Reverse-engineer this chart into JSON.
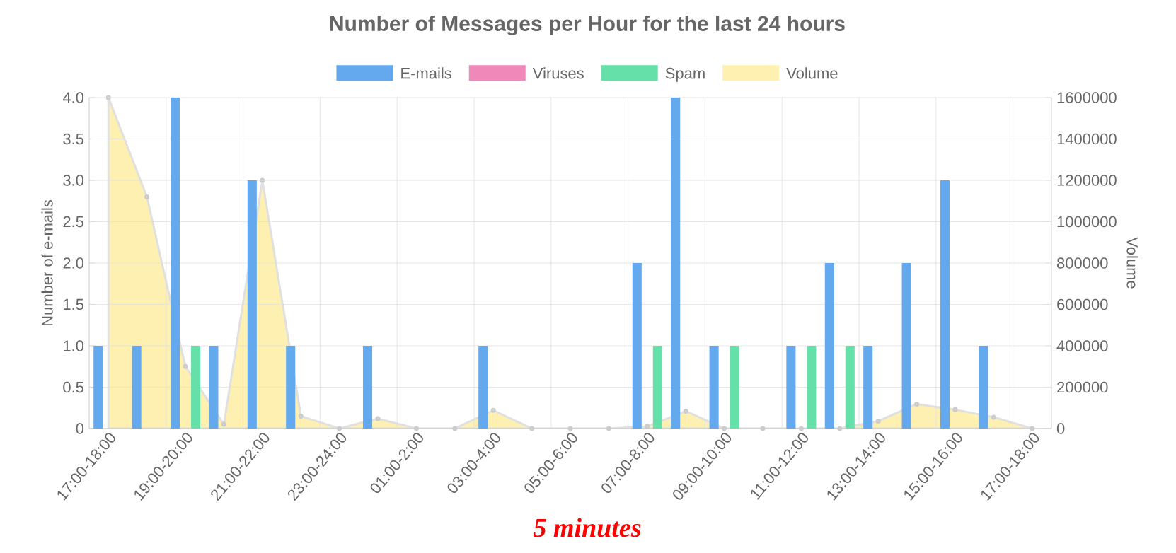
{
  "chart_data": {
    "type": "bar",
    "title": "Number of Messages per Hour for the last 24 hours",
    "ylabel": "Number of e-mails",
    "y2label": "Volume",
    "categories": [
      "17:00-18:00",
      null,
      "19:00-20:00",
      null,
      "21:00-22:00",
      null,
      "23:00-24:00",
      null,
      "01:00-2:00",
      null,
      "03:00-4:00",
      null,
      "05:00-6:00",
      null,
      "07:00-8:00",
      null,
      "09:00-10:00",
      null,
      "11:00-12:00",
      null,
      "13:00-14:00",
      null,
      "15:00-16:00",
      null,
      "17:00-18:00"
    ],
    "series": [
      {
        "name": "E-mails",
        "color": "#64a8ee",
        "values": [
          1,
          1,
          4,
          1,
          3,
          1,
          0,
          1,
          0,
          0,
          1,
          0,
          0,
          0,
          2,
          4,
          1,
          0,
          1,
          2,
          1,
          2,
          3,
          1,
          0
        ]
      },
      {
        "name": "Viruses",
        "color": "#f088b9",
        "values": [
          0,
          0,
          0,
          0,
          0,
          0,
          0,
          0,
          0,
          0,
          0,
          0,
          0,
          0,
          0,
          0,
          0,
          0,
          0,
          0,
          0,
          0,
          0,
          0,
          0
        ]
      },
      {
        "name": "Spam",
        "color": "#66e0a9",
        "values": [
          0,
          0,
          1,
          0,
          0,
          0,
          0,
          0,
          0,
          0,
          0,
          0,
          0,
          0,
          1,
          0,
          1,
          0,
          1,
          1,
          0,
          0,
          0,
          0,
          0
        ]
      },
      {
        "name": "Volume",
        "type": "area",
        "axis": "y2",
        "color": "#fdf0b0",
        "marker": "circle",
        "values": [
          1600000,
          1120000,
          300000,
          20000,
          1200000,
          60000,
          0,
          48000,
          0,
          0,
          88000,
          0,
          0,
          0,
          10000,
          84000,
          0,
          0,
          0,
          0,
          36000,
          118000,
          91000,
          55000,
          0
        ]
      }
    ],
    "ylim": [
      0,
      4
    ],
    "yticks": [
      0,
      0.5,
      {
        "value": 1,
        "label": "1.0"
      },
      1.5,
      {
        "value": 2,
        "label": "2.0"
      },
      2.5,
      {
        "value": 3,
        "label": "3.0"
      },
      3.5,
      {
        "value": 4,
        "label": "4.0"
      }
    ],
    "y2lim": [
      0,
      1600000
    ],
    "y2ticks": [
      0,
      200000,
      400000,
      600000,
      800000,
      1000000,
      1200000,
      1400000,
      1600000
    ],
    "grid": true,
    "legend": "top",
    "annotations": [
      "5 minutes"
    ]
  }
}
